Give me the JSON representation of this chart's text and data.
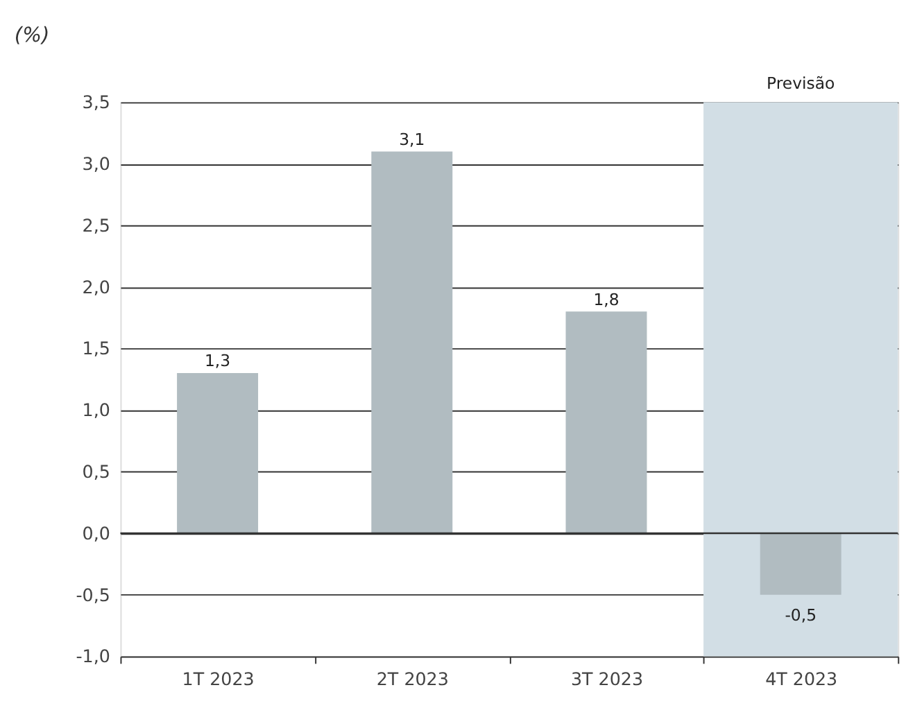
{
  "chart_data": {
    "type": "bar",
    "ylabel": "(%)",
    "categories": [
      "1T 2023",
      "2T 2023",
      "3T 2023",
      "4T 2023"
    ],
    "values": [
      1.3,
      3.1,
      1.8,
      -0.5
    ],
    "color": "#b1bcc1",
    "value_labels": [
      "1,3",
      "3,1",
      "1,8",
      "-0,5"
    ],
    "ylim": [
      -1.0,
      3.5
    ],
    "yticks": [
      {
        "value": -1.0,
        "label": "-1,0"
      },
      {
        "value": -0.5,
        "label": "-0,5"
      },
      {
        "value": 0,
        "label": "0,0"
      },
      {
        "value": 0.5,
        "label": "0,5"
      },
      {
        "value": 1.0,
        "label": "1,0"
      },
      {
        "value": 1.5,
        "label": "1,5"
      },
      {
        "value": 2.0,
        "label": "2,0"
      },
      {
        "value": 2.5,
        "label": "2,5"
      },
      {
        "value": 3.0,
        "label": "3,0"
      },
      {
        "value": 3.5,
        "label": "3,5"
      }
    ],
    "grid": "y",
    "bands": [
      {
        "axis": "x",
        "from": "4T 2023",
        "to": "4T 2023",
        "label": "Previsão",
        "color": "#d2dee5"
      }
    ]
  }
}
